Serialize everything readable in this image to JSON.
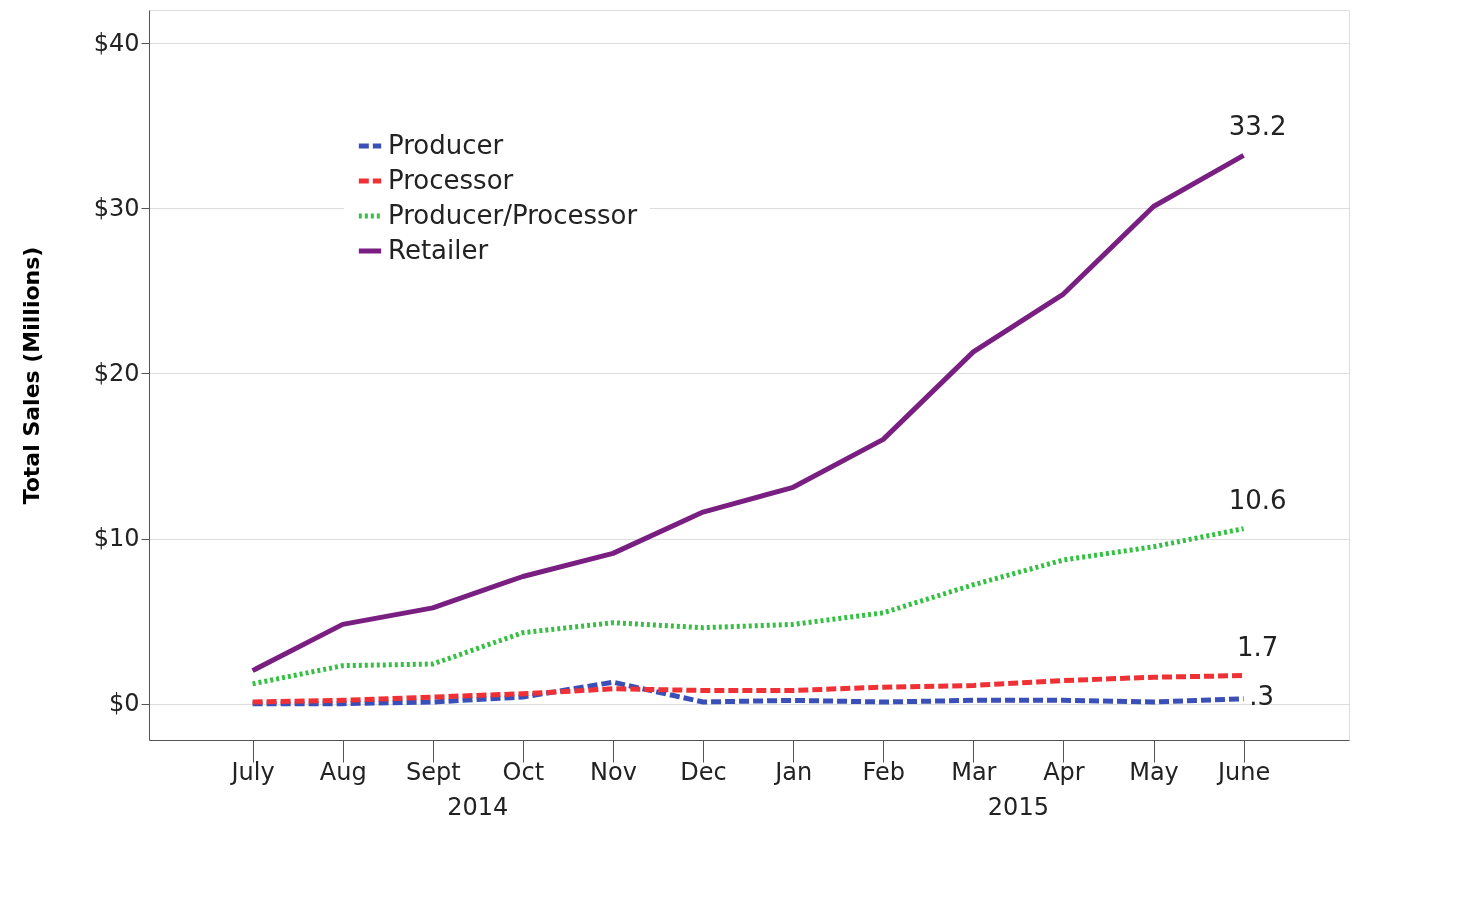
{
  "chart_data": {
    "type": "line",
    "ylabel": "Total Sales (Millions)",
    "categories": [
      "July",
      "Aug",
      "Sept",
      "Oct",
      "Nov",
      "Dec",
      "Jan",
      "Feb",
      "Mar",
      "Apr",
      "May",
      "June"
    ],
    "series": [
      {
        "name": "Producer",
        "color": "#3a50b8",
        "line_style": "dashed",
        "values": [
          0,
          0,
          0.1,
          0.4,
          1.3,
          0.1,
          0.2,
          0.1,
          0.2,
          0.2,
          0.1,
          0.3
        ],
        "value_labels": [
          null,
          null,
          null,
          null,
          null,
          null,
          null,
          null,
          null,
          null,
          null,
          ".3"
        ]
      },
      {
        "name": "Processor",
        "color": "#ef3034",
        "line_style": "dashed",
        "values": [
          0.1,
          0.2,
          0.4,
          0.6,
          0.9,
          0.8,
          0.8,
          1.0,
          1.1,
          1.4,
          1.6,
          1.7
        ],
        "value_labels": [
          null,
          null,
          null,
          null,
          null,
          null,
          null,
          null,
          null,
          null,
          null,
          "1.7"
        ]
      },
      {
        "name": "Producer/Processor",
        "color": "#35c043",
        "line_style": "dotted",
        "values": [
          1.2,
          2.3,
          2.4,
          4.3,
          4.9,
          4.6,
          4.8,
          5.5,
          7.2,
          8.7,
          9.5,
          10.6
        ],
        "value_labels": [
          null,
          null,
          null,
          null,
          null,
          null,
          null,
          null,
          null,
          null,
          null,
          "10.6"
        ]
      },
      {
        "name": "Retailer",
        "color": "#7a1f82",
        "line_style": "solid",
        "values": [
          2.0,
          4.8,
          5.8,
          7.7,
          9.1,
          11.6,
          13.1,
          16.0,
          21.3,
          24.8,
          30.1,
          33.2
        ],
        "value_labels": [
          null,
          null,
          null,
          null,
          null,
          null,
          null,
          null,
          null,
          null,
          null,
          "33.2"
        ]
      }
    ],
    "ylim": [
      -2.2,
      42
    ],
    "yticks": [
      {
        "value": 0,
        "label": "$0"
      },
      {
        "value": 10,
        "label": "$10"
      },
      {
        "value": 20,
        "label": "$20"
      },
      {
        "value": 30,
        "label": "$30"
      },
      {
        "value": 40,
        "label": "$40"
      }
    ],
    "grid": "y",
    "legend": "top left",
    "annotations": [
      "2014",
      "2015"
    ]
  }
}
